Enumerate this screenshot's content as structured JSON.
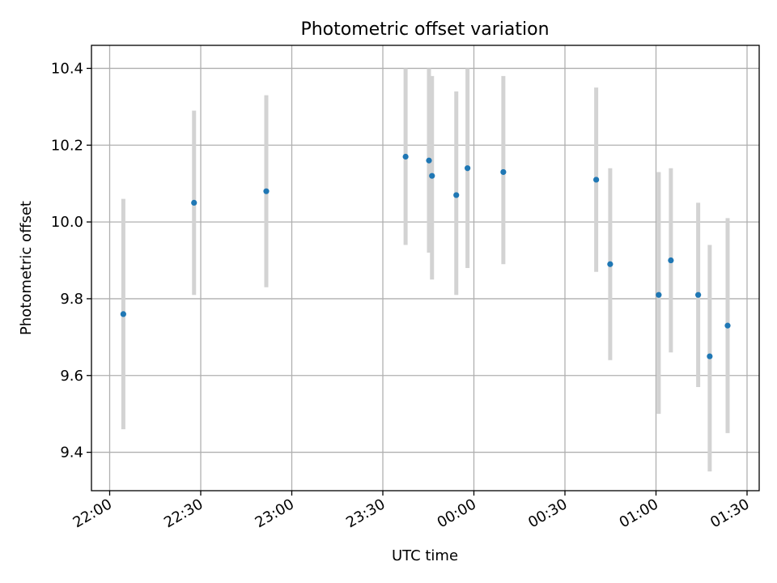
{
  "chart_data": {
    "type": "scatter",
    "title": "Photometric offset variation",
    "xlabel": "UTC time",
    "ylabel": "Photometric offset",
    "x_tick_labels": [
      "22:00",
      "22:30",
      "23:00",
      "23:30",
      "00:00",
      "00:30",
      "01:00",
      "01:30"
    ],
    "y_tick_labels": [
      "9.4",
      "9.6",
      "9.8",
      "10.0",
      "10.2",
      "10.4"
    ],
    "y_ticks": [
      9.4,
      9.6,
      9.8,
      10.0,
      10.2,
      10.4
    ],
    "x_ticks_minutes": [
      0,
      30,
      60,
      90,
      120,
      150,
      180,
      210
    ],
    "xlim_minutes": [
      -6,
      214
    ],
    "ylim": [
      9.3,
      10.46
    ],
    "grid": true,
    "colors": {
      "marker": "#1f77b4",
      "errorbar": "#d3d3d3",
      "grid": "#b0b0b0"
    },
    "points": [
      {
        "t": "22:04:30",
        "y": 9.76,
        "lo": 9.46,
        "hi": 10.06
      },
      {
        "t": "22:27:48",
        "y": 10.05,
        "lo": 9.81,
        "hi": 10.29
      },
      {
        "t": "22:51:36",
        "y": 10.08,
        "lo": 9.83,
        "hi": 10.33
      },
      {
        "t": "23:37:30",
        "y": 10.17,
        "lo": 9.94,
        "hi": 10.4
      },
      {
        "t": "23:45:12",
        "y": 10.16,
        "lo": 9.92,
        "hi": 10.4
      },
      {
        "t": "23:46:12",
        "y": 10.12,
        "lo": 9.85,
        "hi": 10.38
      },
      {
        "t": "23:54:12",
        "y": 10.07,
        "lo": 9.81,
        "hi": 10.34
      },
      {
        "t": "23:57:54",
        "y": 10.14,
        "lo": 9.88,
        "hi": 10.4
      },
      {
        "t": "00:09:42",
        "y": 10.13,
        "lo": 9.89,
        "hi": 10.38
      },
      {
        "t": "00:40:18",
        "y": 10.11,
        "lo": 9.87,
        "hi": 10.35
      },
      {
        "t": "00:44:54",
        "y": 9.89,
        "lo": 9.64,
        "hi": 10.14
      },
      {
        "t": "01:00:54",
        "y": 9.81,
        "lo": 9.5,
        "hi": 10.13
      },
      {
        "t": "01:04:54",
        "y": 9.9,
        "lo": 9.66,
        "hi": 10.14
      },
      {
        "t": "01:13:54",
        "y": 9.81,
        "lo": 9.57,
        "hi": 10.05
      },
      {
        "t": "01:17:42",
        "y": 9.65,
        "lo": 9.35,
        "hi": 9.94
      },
      {
        "t": "01:23:36",
        "y": 9.73,
        "lo": 9.45,
        "hi": 10.01
      }
    ]
  }
}
